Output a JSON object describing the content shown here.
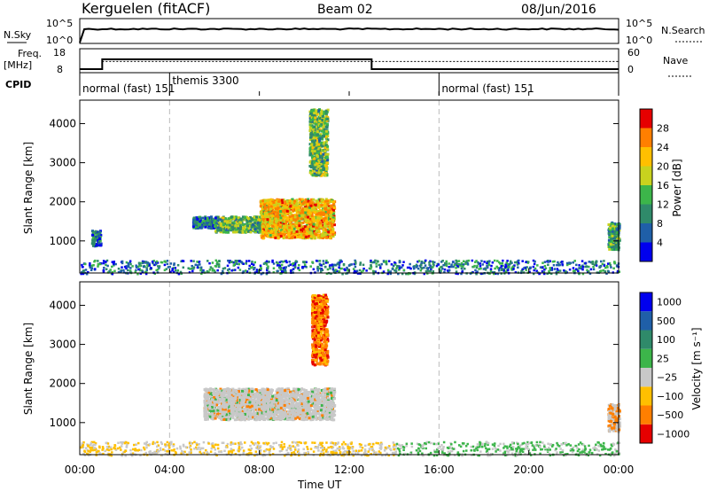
{
  "header": {
    "station": "Kerguelen (fitACF)",
    "beam": "Beam 02",
    "date": "08/Jun/2016"
  },
  "noise_panel": {
    "left_label": "N.Sky",
    "right_label": "N.Search",
    "left_ticks": [
      "10^5",
      "10^0"
    ],
    "right_ticks": [
      "10^5",
      "10^0"
    ]
  },
  "freq_panel": {
    "left_label_1": "Freq.",
    "left_label_2": "[MHz]",
    "right_label": "Nave",
    "left_ticks": [
      "18",
      "8"
    ],
    "right_ticks": [
      "60",
      "0"
    ],
    "freq_steps": [
      {
        "t": 0.0,
        "mhz": 9.5
      },
      {
        "t": 1.0,
        "mhz": 13.6
      },
      {
        "t": 13.0,
        "mhz": 9.5
      },
      {
        "t": 24.0,
        "mhz": 9.5
      }
    ],
    "nave_level": 28
  },
  "cpid": {
    "label": "CPID",
    "segments": [
      {
        "start": 0.0,
        "text": "normal (fast)  151"
      },
      {
        "start": 4.0,
        "text": "themis 3300"
      },
      {
        "start": 16.0,
        "text": "normal (fast)  151"
      }
    ]
  },
  "x_axis": {
    "title": "Time UT",
    "ticks": [
      "00:00",
      "04:00",
      "08:00",
      "12:00",
      "16:00",
      "20:00",
      "00:00"
    ],
    "range_hours": [
      0,
      24
    ]
  },
  "colors": {
    "power_scale": [
      "#0000ee",
      "#1f5fa8",
      "#2f8a6a",
      "#3cb54a",
      "#c8d21e",
      "#ffbf00",
      "#ff7f00",
      "#e60000"
    ],
    "velocity_scale": [
      "#e60000",
      "#ff7f00",
      "#ffbf00",
      "#c8c8c8",
      "#3cb54a",
      "#2f8a6a",
      "#1f5fa8",
      "#0000ee"
    ]
  },
  "chart_data": [
    {
      "type": "heatmap",
      "ylabel": "Slant Range [km]",
      "xlabel": "",
      "ylim": [
        180,
        4600
      ],
      "yticks": [
        "1000",
        "2000",
        "3000",
        "4000"
      ],
      "colorbar_label": "Power [dB]",
      "colorbar_ticks": [
        "4",
        "8",
        "12",
        "16",
        "20",
        "24",
        "28"
      ],
      "colorbar_range": [
        0,
        32
      ],
      "patches": [
        {
          "t0": 8.0,
          "t1": 11.3,
          "r0": 1100,
          "r1": 2100,
          "value": 22
        },
        {
          "t0": 6.0,
          "t1": 8.0,
          "r0": 1250,
          "r1": 1650,
          "value": 14
        },
        {
          "t0": 5.0,
          "t1": 6.0,
          "r0": 1350,
          "r1": 1650,
          "value": 8
        },
        {
          "t0": 10.2,
          "t1": 11.0,
          "r0": 2700,
          "r1": 4400,
          "value": 14
        },
        {
          "t0": 23.5,
          "t1": 24.0,
          "r0": 800,
          "r1": 1500,
          "value": 12
        },
        {
          "t0": 0.5,
          "t1": 0.9,
          "r0": 900,
          "r1": 1300,
          "value": 8
        }
      ]
    },
    {
      "type": "heatmap",
      "ylabel": "Slant Range [km]",
      "xlabel": "Time UT",
      "ylim": [
        180,
        4600
      ],
      "yticks": [
        "1000",
        "2000",
        "3000",
        "4000"
      ],
      "colorbar_label": "Velocity [m s⁻¹]",
      "colorbar_ticks": [
        "1000",
        "500",
        "100",
        "25",
        "−25",
        "−100",
        "−500",
        "−1000"
      ],
      "patches": [
        {
          "t0": 5.5,
          "t1": 11.3,
          "r0": 1100,
          "r1": 1900,
          "value": 0
        },
        {
          "t0": 10.3,
          "t1": 11.0,
          "r0": 2500,
          "r1": 4300,
          "value": -300
        },
        {
          "t0": 23.5,
          "t1": 24.0,
          "r0": 800,
          "r1": 1500,
          "value": -50
        }
      ]
    }
  ]
}
